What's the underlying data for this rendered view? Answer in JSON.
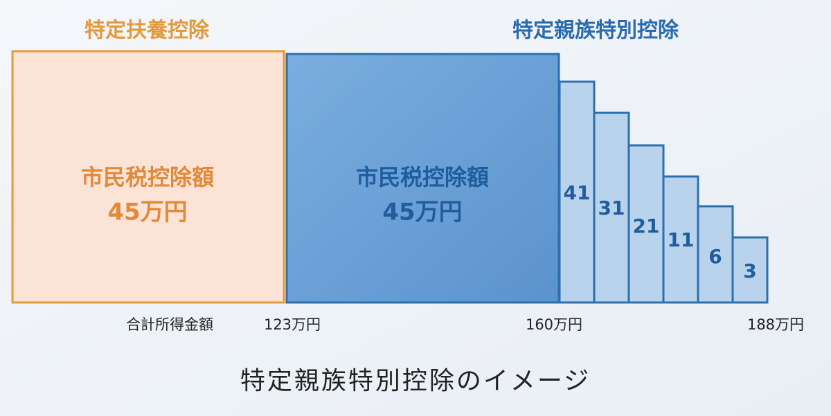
{
  "left": {
    "title": "特定扶養控除",
    "label": "市民税控除額",
    "amount": "45万円"
  },
  "right": {
    "title": "特定親族特別控除",
    "label": "市民税控除額",
    "amount": "45万円",
    "steps": [
      41,
      31,
      21,
      11,
      6,
      3
    ]
  },
  "axis": {
    "label": "合計所得金額",
    "ticks": [
      "123万円",
      "160万円",
      "188万円"
    ]
  },
  "caption": "特定親族特別控除のイメージ"
}
